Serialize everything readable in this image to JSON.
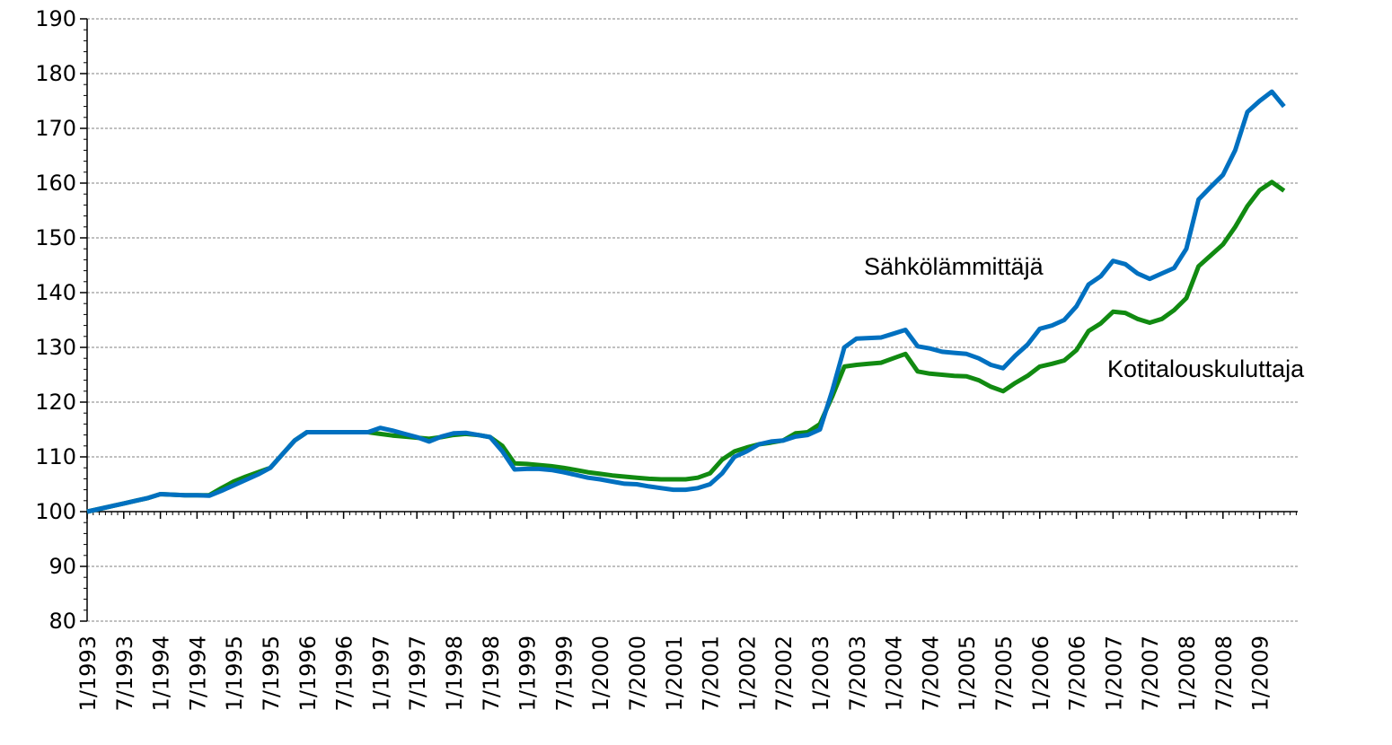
{
  "chart_data": {
    "type": "line",
    "categories": [
      "1/1993",
      null,
      null,
      "7/1993",
      null,
      null,
      "1/1994",
      null,
      null,
      "7/1994",
      null,
      null,
      "1/1995",
      null,
      null,
      "7/1995",
      null,
      null,
      "1/1996",
      null,
      null,
      "7/1996",
      null,
      null,
      "1/1997",
      null,
      null,
      "7/1997",
      null,
      null,
      "1/1998",
      null,
      null,
      "7/1998",
      null,
      null,
      "1/1999",
      null,
      null,
      "7/1999",
      null,
      null,
      "1/2000",
      null,
      null,
      "7/2000",
      null,
      null,
      "1/2001",
      null,
      null,
      "7/2001",
      null,
      null,
      "1/2002",
      null,
      null,
      "7/2002",
      null,
      null,
      "1/2003",
      null,
      null,
      "7/2003",
      null,
      null,
      "1/2004",
      null,
      null,
      "7/2004",
      null,
      null,
      "1/2005",
      null,
      null,
      "7/2005",
      null,
      null,
      "1/2006",
      null,
      null,
      "7/2006",
      null,
      null,
      "1/2007",
      null,
      null,
      "7/2007",
      null,
      null,
      "1/2008",
      null,
      null,
      "7/2008",
      null,
      null,
      "1/2009",
      null,
      null
    ],
    "series": [
      {
        "name": "Sähkölämmittäjä",
        "color": "#0070c0",
        "values": [
          100,
          100.5,
          101,
          101.5,
          102,
          102.5,
          103.2,
          103.1,
          103,
          103,
          102.9,
          103.8,
          104.8,
          105.8,
          106.8,
          108,
          110.5,
          113,
          114.5,
          114.5,
          114.5,
          114.5,
          114.5,
          114.5,
          115.3,
          114.8,
          114.2,
          113.6,
          112.8,
          113.7,
          114.3,
          114.4,
          114,
          113.6,
          111,
          107.7,
          107.8,
          107.8,
          107.6,
          107.2,
          106.7,
          106.2,
          105.9,
          105.5,
          105.1,
          105,
          104.6,
          104.3,
          104,
          104,
          104.3,
          105,
          107,
          110,
          111,
          112.3,
          112.8,
          113,
          113.7,
          114,
          115,
          122,
          130,
          131.6,
          131.7,
          131.8,
          132.5,
          133.2,
          130.2,
          129.8,
          129.2,
          129,
          128.8,
          128,
          126.8,
          126.2,
          128.5,
          130.5,
          133.4,
          134,
          135,
          137.5,
          141.5,
          143,
          145.8,
          145.2,
          143.5,
          142.5,
          143.5,
          144.5,
          148,
          157,
          159.3,
          161.5,
          166,
          173,
          175,
          176.7,
          174
        ]
      },
      {
        "name": "Kotitalouskuluttaja",
        "color": "#118a11",
        "values": [
          100,
          100.5,
          101,
          101.5,
          102,
          102.5,
          103.2,
          103.1,
          103,
          103,
          103,
          104.3,
          105.5,
          106.4,
          107.2,
          108,
          110.5,
          113,
          114.5,
          114.5,
          114.5,
          114.5,
          114.5,
          114.5,
          114.2,
          113.9,
          113.7,
          113.5,
          113.3,
          113.6,
          114,
          114.2,
          114,
          113.6,
          112,
          108.8,
          108.7,
          108.5,
          108.3,
          108,
          107.6,
          107.2,
          106.9,
          106.6,
          106.4,
          106.2,
          106,
          105.9,
          105.9,
          105.9,
          106.2,
          107,
          109.5,
          111,
          111.7,
          112.3,
          112.6,
          113,
          114.3,
          114.5,
          116,
          121,
          126.5,
          126.8,
          127,
          127.2,
          128,
          128.8,
          125.6,
          125.2,
          125,
          124.8,
          124.7,
          124,
          122.8,
          122,
          123.5,
          124.8,
          126.5,
          127,
          127.6,
          129.5,
          133,
          134.4,
          136.5,
          136.3,
          135.2,
          134.5,
          135.2,
          136.8,
          139,
          144.8,
          146.8,
          148.8,
          152,
          155.8,
          158.7,
          160.2,
          158.6
        ]
      }
    ],
    "ylim": [
      80,
      190
    ],
    "yticks": [
      80,
      90,
      100,
      110,
      120,
      130,
      140,
      150,
      160,
      170,
      180,
      190
    ],
    "xaxis_crosses": 100,
    "grid": true
  }
}
